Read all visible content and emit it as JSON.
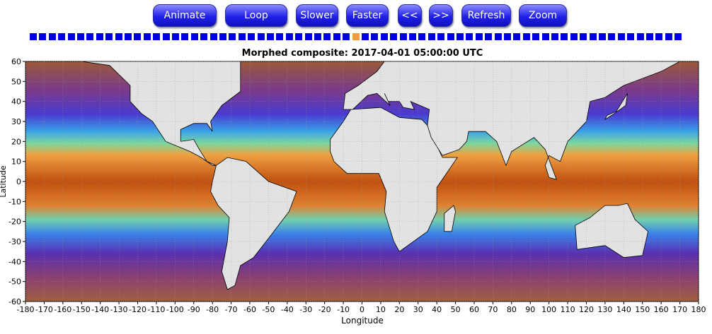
{
  "toolbar": {
    "buttons": [
      "Animate",
      "Loop",
      "Slower",
      "Faster",
      "<<",
      ">>",
      "Refresh",
      "Zoom"
    ]
  },
  "map": {
    "title": "Morphed composite: 2017-04-01 05:00:00 UTC",
    "x_label": "Longitude",
    "y_label": "Latitude",
    "xticks": [
      -180,
      -170,
      -160,
      -150,
      -140,
      -130,
      -120,
      -110,
      -100,
      -90,
      -80,
      -70,
      -60,
      -50,
      -40,
      -30,
      -20,
      -10,
      0,
      10,
      20,
      30,
      40,
      50,
      60,
      70,
      80,
      90,
      100,
      110,
      120,
      130,
      140,
      150,
      160,
      170,
      180
    ],
    "yticks": [
      60,
      50,
      40,
      30,
      20,
      10,
      0,
      -10,
      -20,
      -30,
      -40,
      -50,
      -60
    ]
  }
}
